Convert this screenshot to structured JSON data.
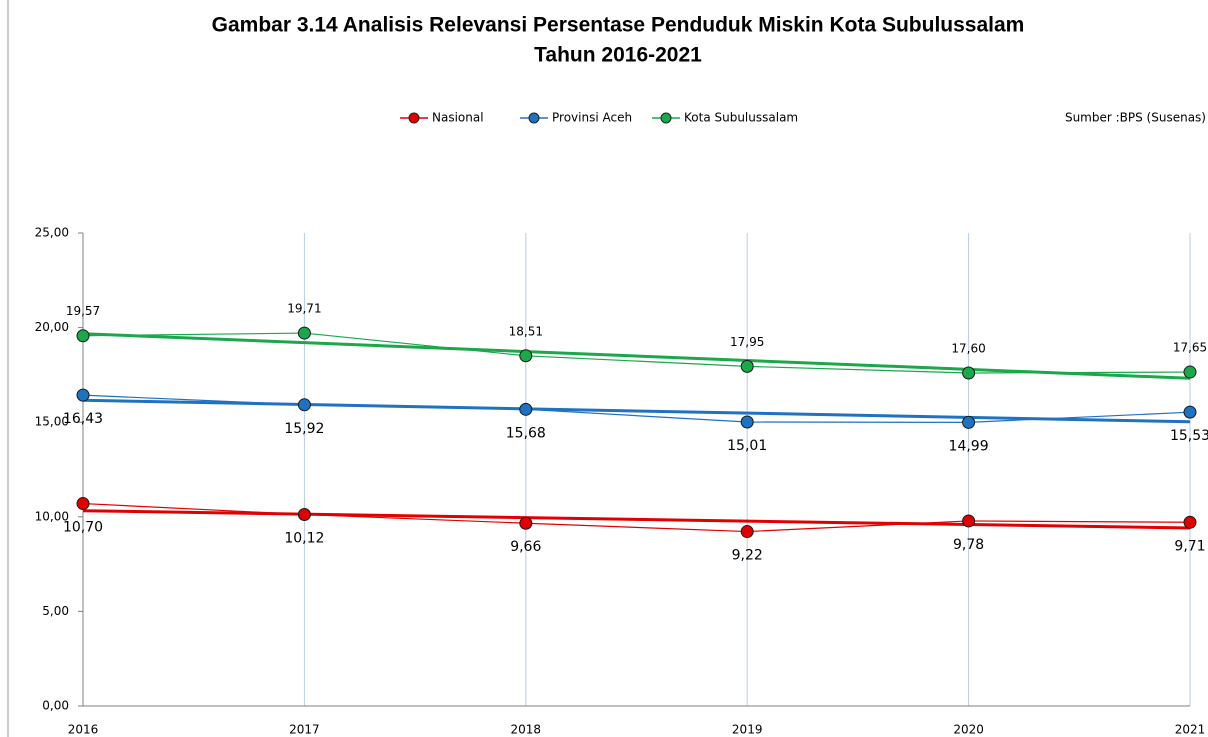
{
  "chart_data": {
    "type": "line",
    "title": [
      "Gambar 3.14 Analisis Relevansi Persentase Penduduk Miskin Kota Subulussalam",
      "Tahun 2016-2021"
    ],
    "source": "Sumber :BPS (Susenas)",
    "x": [
      2016,
      2017,
      2018,
      2019,
      2020,
      2021
    ],
    "xlim": [
      2016,
      2021
    ],
    "xticks": [
      2016,
      2017,
      2018,
      2019,
      2020,
      2021
    ],
    "ylim": [
      0,
      25
    ],
    "yticks": [
      {
        "value": 0,
        "label": "0,00"
      },
      {
        "value": 5,
        "label": "5,00"
      },
      {
        "value": 10,
        "label": "10,00"
      },
      {
        "value": 15,
        "label": "15,00"
      },
      {
        "value": 20,
        "label": "20,00"
      },
      {
        "value": 25,
        "label": "25,00"
      }
    ],
    "grid": "x",
    "trendline": true,
    "legend": "top",
    "series": [
      {
        "name": "Nasional",
        "color": "#e00000",
        "values": [
          10.7,
          10.12,
          9.66,
          9.22,
          9.78,
          9.71
        ],
        "value_labels": [
          "10,70",
          "10,12",
          "9,66",
          "9,22",
          "9,78",
          "9,71"
        ]
      },
      {
        "name": "Provinsi Aceh",
        "color": "#1f72c0",
        "values": [
          16.43,
          15.92,
          15.68,
          15.01,
          14.99,
          15.53
        ],
        "value_labels": [
          "16,43",
          "15,92",
          "15,68",
          "15,01",
          "14,99",
          "15,53"
        ]
      },
      {
        "name": "Kota Subulussalam",
        "color": "#1aa84a",
        "values": [
          19.57,
          19.71,
          18.51,
          17.95,
          17.6,
          17.65
        ],
        "value_labels": [
          "19,57",
          "19,71",
          "18,51",
          "17,95",
          "17,60",
          "17,65"
        ]
      }
    ]
  }
}
